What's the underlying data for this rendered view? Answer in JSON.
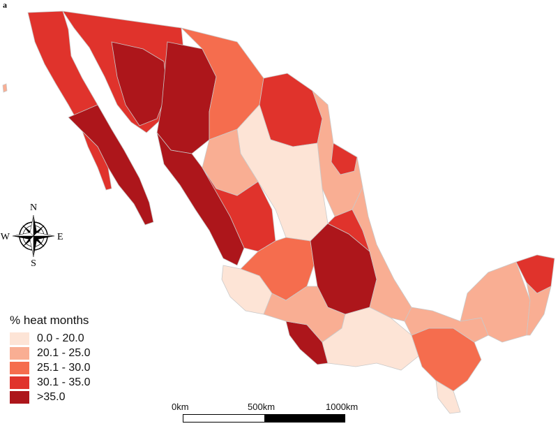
{
  "panel_label": "a",
  "legend": {
    "title": "% heat months",
    "items": [
      {
        "label": "0.0 - 20.0",
        "color": "#fde4d6"
      },
      {
        "label": "20.1 - 25.0",
        "color": "#f9ae93"
      },
      {
        "label": "25.1 - 30.0",
        "color": "#f56d4e"
      },
      {
        "label": "30.1 - 35.0",
        "color": "#e0332c"
      },
      {
        "label": ">35.0",
        "color": "#ad161b"
      }
    ]
  },
  "compass": {
    "n": "N",
    "s": "S",
    "e": "E",
    "w": "W"
  },
  "scale_bar": {
    "labels": [
      "0km",
      "500km",
      "1000km"
    ]
  },
  "colors": {
    "boundary": "#bdbdbd",
    "outline": "#9e9e9e"
  }
}
